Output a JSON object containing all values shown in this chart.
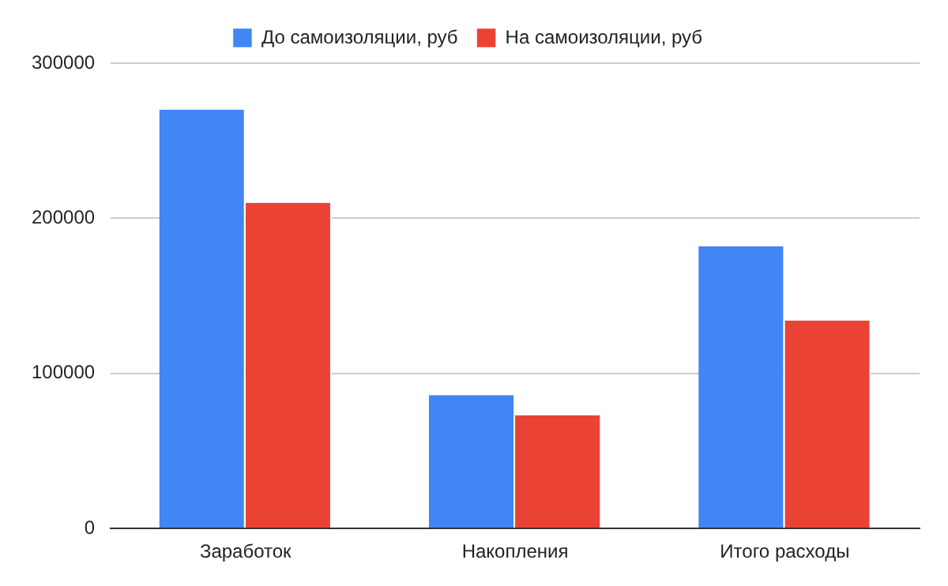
{
  "chart_data": {
    "type": "bar",
    "categories": [
      "Заработок",
      "Накопления",
      "Итого расходы"
    ],
    "series": [
      {
        "name": "До самоизоляции, руб",
        "color": "#4285f4",
        "values": [
          270000,
          86000,
          182000
        ]
      },
      {
        "name": "На самоизоляции, руб",
        "color": "#ea4335",
        "values": [
          210000,
          73000,
          134000
        ]
      }
    ],
    "ylim": [
      0,
      300000
    ],
    "yticks": [
      0,
      100000,
      200000,
      300000
    ],
    "grid": "y",
    "legend": "top"
  }
}
